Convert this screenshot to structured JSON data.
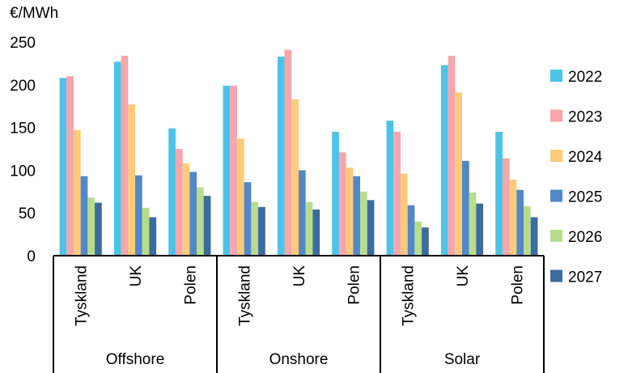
{
  "chart_data": {
    "type": "bar",
    "ylabel": "€/MWh",
    "ylim": [
      0,
      250
    ],
    "yticks": [
      0,
      50,
      100,
      150,
      200,
      250
    ],
    "groups": [
      "Offshore",
      "Onshore",
      "Solar"
    ],
    "categories": [
      "Tyskland",
      "UK",
      "Polen"
    ],
    "legend_position": "right",
    "series": [
      {
        "name": "2022",
        "color": "#4dc3e6",
        "values": [
          [
            208,
            227,
            149
          ],
          [
            199,
            233,
            145
          ],
          [
            158,
            223,
            145
          ]
        ]
      },
      {
        "name": "2023",
        "color": "#f7a6ab",
        "values": [
          [
            210,
            234,
            125
          ],
          [
            199,
            241,
            121
          ],
          [
            145,
            234,
            114
          ]
        ]
      },
      {
        "name": "2024",
        "color": "#fdcb7a",
        "values": [
          [
            147,
            177,
            108
          ],
          [
            137,
            183,
            103
          ],
          [
            96,
            191,
            89
          ]
        ]
      },
      {
        "name": "2025",
        "color": "#5088c8",
        "values": [
          [
            93,
            94,
            98
          ],
          [
            86,
            100,
            93
          ],
          [
            59,
            111,
            77
          ]
        ]
      },
      {
        "name": "2026",
        "color": "#b8dc8c",
        "values": [
          [
            68,
            56,
            80
          ],
          [
            63,
            63,
            75
          ],
          [
            40,
            74,
            58
          ]
        ]
      },
      {
        "name": "2027",
        "color": "#3c6b9e",
        "values": [
          [
            62,
            45,
            70
          ],
          [
            57,
            54,
            65
          ],
          [
            33,
            61,
            45
          ]
        ]
      }
    ]
  }
}
